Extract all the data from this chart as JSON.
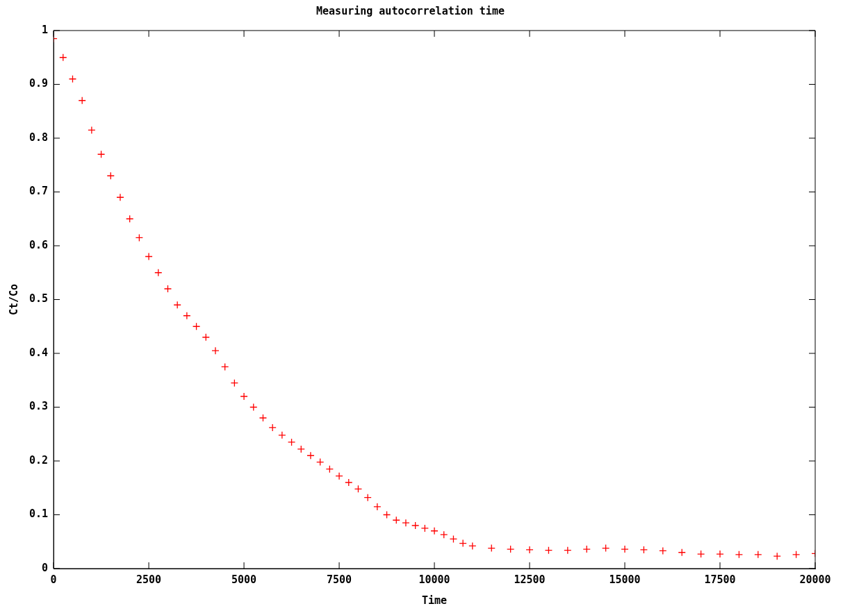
{
  "chart_data": {
    "type": "scatter",
    "title": "Measuring autocorrelation time",
    "xlabel": "Time",
    "ylabel": "Ct/Co",
    "x": [
      0,
      250,
      500,
      750,
      1000,
      1250,
      1500,
      1750,
      2000,
      2250,
      2500,
      2750,
      3000,
      3250,
      3500,
      3750,
      4000,
      4250,
      4500,
      4750,
      5000,
      5250,
      5500,
      5750,
      6000,
      6250,
      6500,
      6750,
      7000,
      7250,
      7500,
      7750,
      8000,
      8250,
      8500,
      8750,
      9000,
      9250,
      9500,
      9750,
      10000,
      10250,
      10500,
      10750,
      11000,
      11500,
      12000,
      12500,
      13000,
      13500,
      14000,
      14500,
      15000,
      15500,
      16000,
      16500,
      17000,
      17500,
      18000,
      18500,
      19000,
      19500,
      20000
    ],
    "series": [
      {
        "color": "#ff0000",
        "values": [
          0.985,
          0.95,
          0.91,
          0.87,
          0.815,
          0.77,
          0.73,
          0.69,
          0.65,
          0.615,
          0.58,
          0.55,
          0.52,
          0.49,
          0.47,
          0.45,
          0.43,
          0.405,
          0.375,
          0.345,
          0.32,
          0.3,
          0.28,
          0.262,
          0.248,
          0.235,
          0.222,
          0.21,
          0.198,
          0.185,
          0.172,
          0.16,
          0.148,
          0.132,
          0.115,
          0.1,
          0.09,
          0.085,
          0.08,
          0.075,
          0.07,
          0.063,
          0.055,
          0.047,
          0.042,
          0.038,
          0.036,
          0.035,
          0.034,
          0.034,
          0.036,
          0.038,
          0.036,
          0.035,
          0.033,
          0.03,
          0.027,
          0.027,
          0.026,
          0.026,
          0.023,
          0.026,
          0.028
        ]
      }
    ],
    "xlim": [
      0,
      20000
    ],
    "xticks": [
      0,
      2500,
      5000,
      7500,
      10000,
      12500,
      15000,
      17500,
      20000
    ],
    "ylim": [
      0,
      1
    ],
    "yticks": [
      0,
      0.1,
      0.2,
      0.3,
      0.4,
      0.5,
      0.6,
      0.7,
      0.8,
      0.9,
      1
    ],
    "marker": "cross",
    "grid": false,
    "legend": false
  }
}
